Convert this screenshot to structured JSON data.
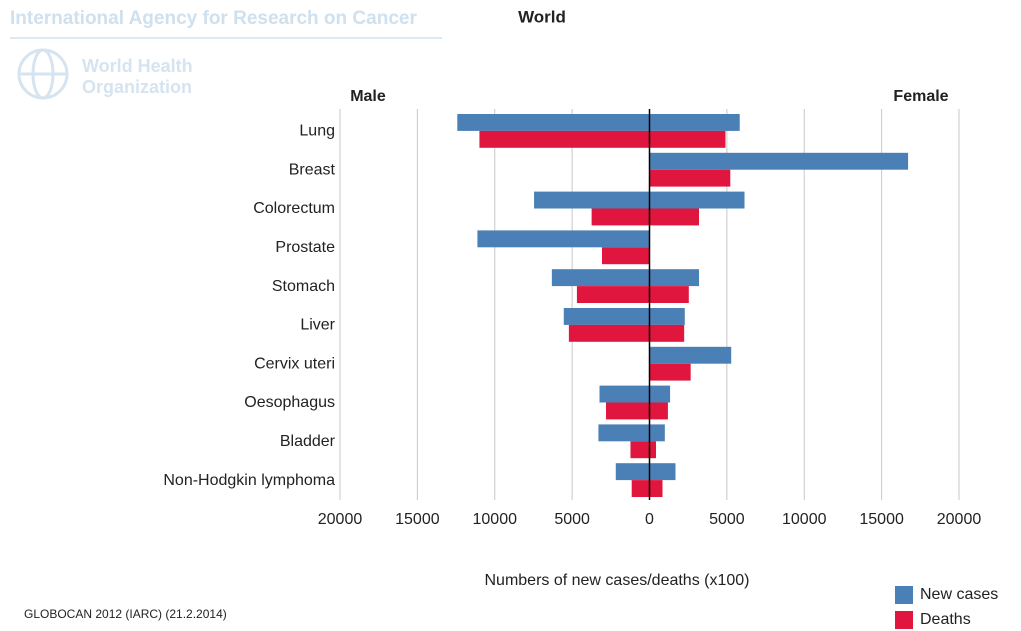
{
  "header": {
    "organization": "International Agency for Research on Cancer",
    "who_line1": "World Health",
    "who_line2": "Organization"
  },
  "chart_data": {
    "type": "butterfly-bar",
    "title": "World",
    "left_label": "Male",
    "right_label": "Female",
    "xlabel": "Numbers of new cases/deaths (x100)",
    "source": "GLOBOCAN 2012 (IARC) (21.2.2014)",
    "categories": [
      "Lung",
      "Breast",
      "Colorectum",
      "Prostate",
      "Stomach",
      "Liver",
      "Cervix uteri",
      "Oesophagus",
      "Bladder",
      "Non-Hodgkin lymphoma"
    ],
    "series": [
      {
        "name": "New cases",
        "color": "#4a80b5",
        "male": [
          12420,
          0,
          7460,
          11120,
          6310,
          5540,
          0,
          3230,
          3300,
          2180
        ],
        "female": [
          5830,
          16710,
          6140,
          0,
          3200,
          2280,
          5280,
          1330,
          990,
          1680
        ]
      },
      {
        "name": "Deaths",
        "color": "#e0163f",
        "male": [
          10990,
          0,
          3740,
          3070,
          4690,
          5210,
          0,
          2810,
          1230,
          1150
        ],
        "female": [
          4910,
          5220,
          3200,
          0,
          2540,
          2240,
          2660,
          1190,
          420,
          840
        ]
      }
    ],
    "xlim": [
      -20000,
      20000
    ],
    "xticks": [
      {
        "value": -20000,
        "label": "20000"
      },
      {
        "value": -15000,
        "label": "15000"
      },
      {
        "value": -10000,
        "label": "10000"
      },
      {
        "value": -5000,
        "label": "5000"
      },
      0,
      5000,
      10000,
      15000,
      20000
    ],
    "grid": true,
    "legend": "bottom-right"
  }
}
